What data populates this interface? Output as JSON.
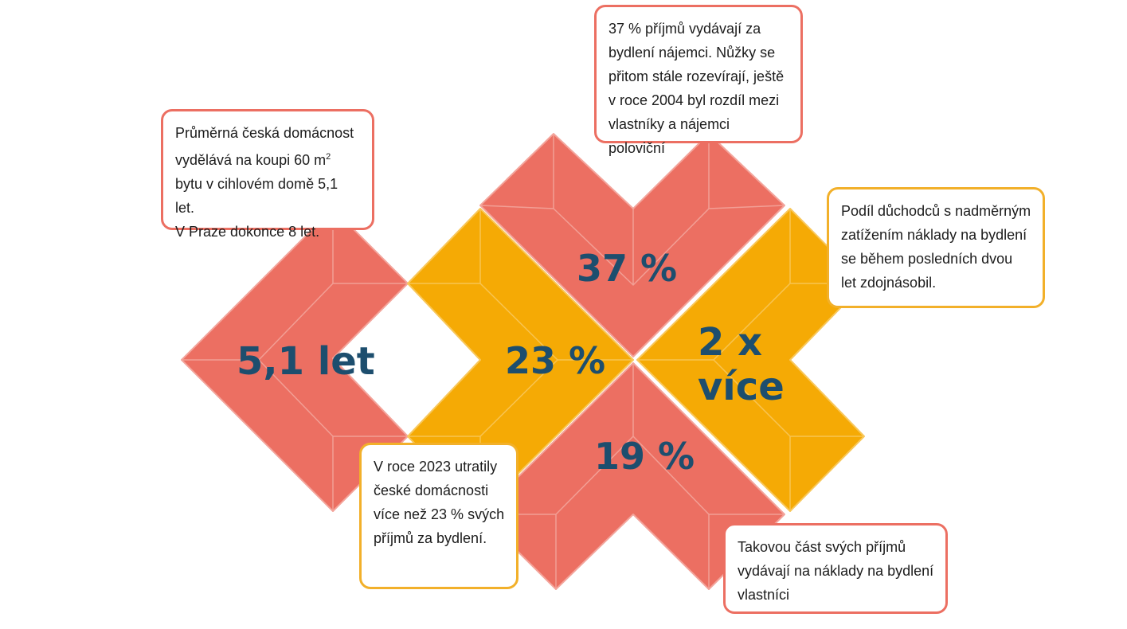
{
  "colors": {
    "red": "#ec6f62",
    "yellow": "#f5aa05",
    "stat_text": "#1d4e6e",
    "callout_red_border": "#ec6f62",
    "callout_yellow_border": "#f2b02a"
  },
  "stats": {
    "years": "5,1 let",
    "rent_share": "37 %",
    "households_share": "23 %",
    "pensioners_line1": "2 x",
    "pensioners_line2": "více",
    "owners_share": "19 %"
  },
  "callouts": {
    "years": {
      "line1": "Průměrná česká domácnost",
      "line2_text": "vydělává na koupi 60 m",
      "line2_sup": "2",
      "line3": "bytu v cihlovém domě 5,1 let.",
      "line4": "V Praze dokonce 8 let."
    },
    "rent": "37 % příjmů vydávají za bydlení nájemci. Nůžky se přitom stále rozevírají, ještě v roce 2004 byl rozdíl mezi vlastníky a nájemci poloviční",
    "pensioners": "Podíl důchodců s nadměrným zatížením náklady na bydlení se během posledních dvou let zdojnásobil.",
    "households": "V roce 2023 utratily české domácnosti více než 23 % svých příjmů za bydlení.",
    "owners": "Takovou část svých příjmů vydávají na náklady na bydlení vlastníci"
  }
}
